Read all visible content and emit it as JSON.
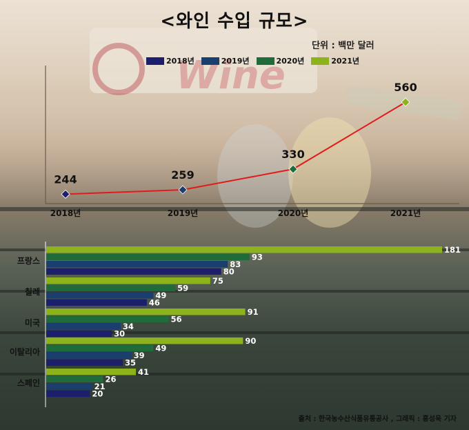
{
  "title": "<와인 수입 규모>",
  "unit": "단위 : 백만 달러",
  "legend": [
    {
      "label": "2018년",
      "color": "#1c1f6b"
    },
    {
      "label": "2019년",
      "color": "#1a3e6e"
    },
    {
      "label": "2020년",
      "color": "#1f6b3a"
    },
    {
      "label": "2021년",
      "color": "#8db31c"
    }
  ],
  "source": "출처 : 한국농수산식품유통공사 , 그래픽 : 홍성욱 기자",
  "chart_data": [
    {
      "type": "line",
      "x": [
        "2018년",
        "2019년",
        "2020년",
        "2021년"
      ],
      "series": [
        {
          "values": [
            244,
            259,
            330,
            560
          ]
        }
      ],
      "marker_colors": [
        "#1c1f6b",
        "#1a3e6e",
        "#1f6b3a",
        "#8db31c"
      ],
      "line_color": "#e01b1b"
    },
    {
      "type": "bar",
      "orientation": "horizontal",
      "categories": [
        "프랑스",
        "칠레",
        "미국",
        "이탈리아",
        "스페인"
      ],
      "series": [
        {
          "name": "2021년",
          "values": [
            181,
            75,
            91,
            90,
            41
          ]
        },
        {
          "name": "2020년",
          "values": [
            93,
            59,
            56,
            49,
            26
          ]
        },
        {
          "name": "2019년",
          "values": [
            83,
            49,
            34,
            39,
            21
          ]
        },
        {
          "name": "2018년",
          "values": [
            80,
            46,
            30,
            35,
            20
          ]
        }
      ],
      "xlim": [
        0,
        181
      ]
    }
  ]
}
